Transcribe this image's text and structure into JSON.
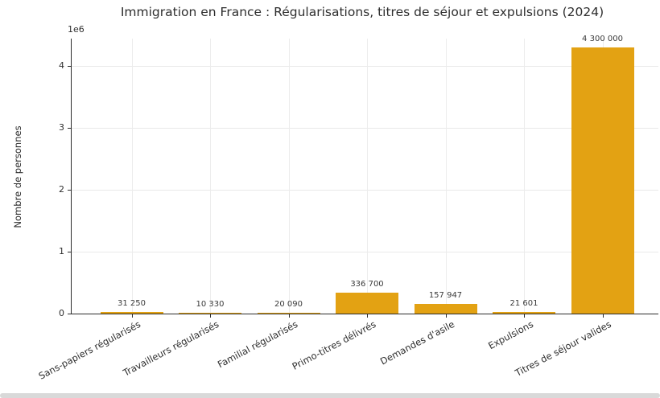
{
  "chart_data": {
    "type": "bar",
    "title": "Immigration en France : Régularisations, titres de séjour et expulsions (2024)",
    "xlabel": "",
    "ylabel": "Nombre de personnes",
    "offset_text": "1e6",
    "categories": [
      "Sans-papiers régularisés",
      "Travailleurs régularisés",
      "Familial régularisés",
      "Primo-titres délivrés",
      "Demandes d'asile",
      "Expulsions",
      "Titres de séjour valides"
    ],
    "values": [
      31250,
      10330,
      20090,
      336700,
      157947,
      21601,
      4300000
    ],
    "value_labels": [
      "31 250",
      "10 330",
      "20 090",
      "336 700",
      "157 947",
      "21 601",
      "4 300 000"
    ],
    "yticks": [
      0,
      1,
      2,
      3,
      4
    ],
    "ytick_unit": 1000000,
    "ylim": [
      0,
      4450000
    ],
    "grid": true,
    "legend": "none",
    "bar_color": "#e3a213"
  }
}
